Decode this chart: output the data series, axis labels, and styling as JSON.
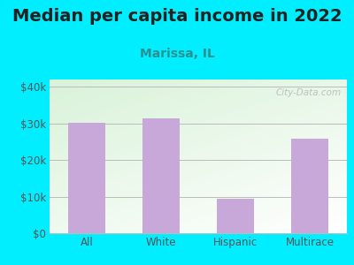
{
  "title": "Median per capita income in 2022",
  "subtitle": "Marissa, IL",
  "categories": [
    "All",
    "White",
    "Hispanic",
    "Multirace"
  ],
  "values": [
    30200,
    31500,
    9300,
    25800
  ],
  "bar_color": "#c8a8d8",
  "background_outer": "#00eeff",
  "ylim": [
    0,
    42000
  ],
  "yticks": [
    0,
    10000,
    20000,
    30000,
    40000
  ],
  "ytick_labels": [
    "$0",
    "$10k",
    "$20k",
    "$30k",
    "$40k"
  ],
  "title_fontsize": 14,
  "subtitle_fontsize": 10,
  "tick_fontsize": 8.5,
  "watermark": "City-Data.com",
  "grid_color": "#bbbbbb",
  "title_color": "#222222",
  "subtitle_color": "#2a9090",
  "tick_color": "#555555"
}
